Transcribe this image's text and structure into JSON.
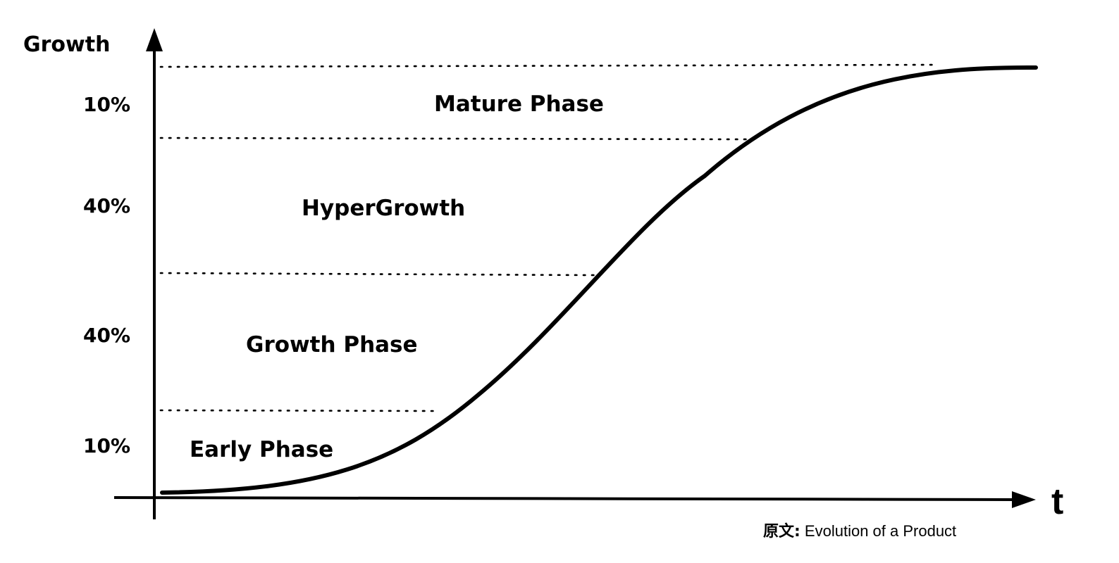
{
  "diagram": {
    "y_axis_label": "Growth",
    "x_axis_label": "t",
    "percent_labels": {
      "mature": "10%",
      "hypergrowth": "40%",
      "growth": "40%",
      "early": "10%"
    },
    "phases": {
      "mature": "Mature Phase",
      "hypergrowth": "HyperGrowth",
      "growth": "Growth Phase",
      "early": "Early Phase"
    },
    "source": {
      "prefix": "原文:",
      "text": " Evolution of a Product"
    },
    "colors": {
      "line": "#000000",
      "background": "#ffffff"
    }
  }
}
